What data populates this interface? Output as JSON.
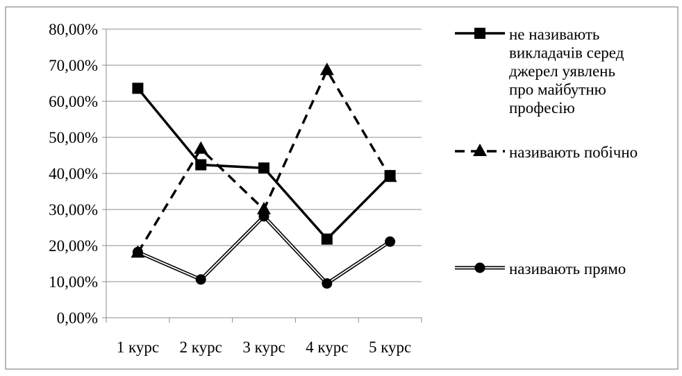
{
  "chart_data": {
    "type": "line",
    "categories": [
      "1 курс",
      "2 курс",
      "3 курс",
      "4 курс",
      "5 курс"
    ],
    "ylim": [
      0,
      80
    ],
    "yticks": [
      "0,00%",
      "10,00%",
      "20,00%",
      "30,00%",
      "40,00%",
      "50,00%",
      "60,00%",
      "70,00%",
      "80,00%"
    ],
    "grid": true,
    "legend": "right",
    "series": [
      {
        "name": "не називають викладачів серед джерел уявлень про майбутню професію",
        "legend_lines": [
          "не називають",
          "викладачів серед",
          "джерел уявлень",
          "про майбутню",
          "професію"
        ],
        "values": [
          63.6,
          42.4,
          41.5,
          21.8,
          39.4
        ],
        "style": "solid-thick",
        "marker": "square",
        "color": "#000000"
      },
      {
        "name": "називають побічно",
        "legend_lines": [
          "називають побічно"
        ],
        "values": [
          18.0,
          46.8,
          30.0,
          68.6,
          39.0
        ],
        "style": "dashed",
        "marker": "triangle",
        "color": "#000000"
      },
      {
        "name": "називають прямо",
        "legend_lines": [
          "називають прямо"
        ],
        "values": [
          18.2,
          10.6,
          28.1,
          9.5,
          21.1
        ],
        "style": "double",
        "marker": "circle",
        "color": "#000000"
      }
    ]
  }
}
